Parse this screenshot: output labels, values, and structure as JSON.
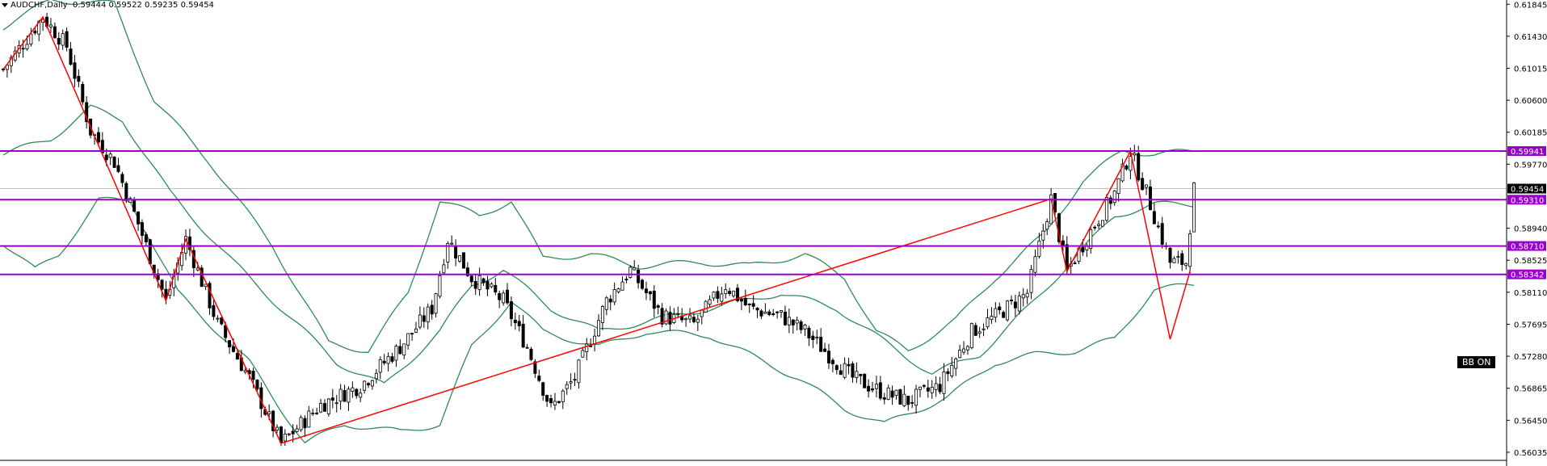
{
  "header": {
    "symbol": "AUDCHF,Daily",
    "ohlc": "0.59444 0.59522 0.59235 0.59454"
  },
  "badge": {
    "label": "BB ON"
  },
  "colors": {
    "bull": "#ffffff",
    "bear": "#000000",
    "wick": "#000000",
    "bollinger": "#2e8b57",
    "zigzag": "#ff0000",
    "level": "#9900cc",
    "price_label_bg": "#000000",
    "grid": "#c0c0c0"
  },
  "chart_data": {
    "type": "candlestick",
    "symbol": "AUDCHF",
    "timeframe": "Daily",
    "ylim": [
      0.5593,
      0.619
    ],
    "y_ticks": [
      "0.61845",
      "0.61430",
      "0.61015",
      "0.60600",
      "0.60185",
      "0.59770",
      "0.58940",
      "0.58525",
      "0.58110",
      "0.57695",
      "0.57280",
      "0.56865",
      "0.56450",
      "0.56035"
    ],
    "current_price": "0.59454",
    "levels": [
      {
        "price": 0.59941,
        "label": "0.59941"
      },
      {
        "price": 0.5931,
        "label": "0.59310"
      },
      {
        "price": 0.5871,
        "label": "0.58710"
      },
      {
        "price": 0.58342,
        "label": "0.58342"
      }
    ],
    "zigzag": [
      {
        "bar": 0,
        "price": 0.61
      },
      {
        "bar": 10,
        "price": 0.6168
      },
      {
        "bar": 41,
        "price": 0.58
      },
      {
        "bar": 46,
        "price": 0.588
      },
      {
        "bar": 70,
        "price": 0.5615
      },
      {
        "bar": 264,
        "price": 0.5932
      },
      {
        "bar": 268,
        "price": 0.5838
      },
      {
        "bar": 284,
        "price": 0.5994
      },
      {
        "bar": 294,
        "price": 0.575
      },
      {
        "bar": 299,
        "price": 0.5838
      }
    ],
    "bollinger_anchors": {
      "upper": [
        [
          0,
          0.6155
        ],
        [
          12,
          0.619
        ],
        [
          28,
          0.6185
        ],
        [
          38,
          0.606
        ],
        [
          52,
          0.598
        ],
        [
          68,
          0.587
        ],
        [
          82,
          0.5745
        ],
        [
          92,
          0.5735
        ],
        [
          102,
          0.581
        ],
        [
          110,
          0.593
        ],
        [
          120,
          0.591
        ],
        [
          128,
          0.593
        ],
        [
          136,
          0.5855
        ],
        [
          148,
          0.586
        ],
        [
          160,
          0.5845
        ],
        [
          176,
          0.585
        ],
        [
          188,
          0.5845
        ],
        [
          202,
          0.586
        ],
        [
          212,
          0.583
        ],
        [
          220,
          0.576
        ],
        [
          228,
          0.5735
        ],
        [
          240,
          0.5775
        ],
        [
          250,
          0.583
        ],
        [
          262,
          0.5885
        ],
        [
          272,
          0.5955
        ],
        [
          282,
          0.5995
        ],
        [
          290,
          0.599
        ],
        [
          300,
          0.5994
        ]
      ],
      "middle": [
        [
          0,
          0.599
        ],
        [
          12,
          0.601
        ],
        [
          22,
          0.605
        ],
        [
          30,
          0.6035
        ],
        [
          42,
          0.594
        ],
        [
          58,
          0.585
        ],
        [
          72,
          0.578
        ],
        [
          84,
          0.572
        ],
        [
          96,
          0.569
        ],
        [
          110,
          0.576
        ],
        [
          118,
          0.582
        ],
        [
          126,
          0.584
        ],
        [
          138,
          0.579
        ],
        [
          150,
          0.576
        ],
        [
          164,
          0.5775
        ],
        [
          178,
          0.579
        ],
        [
          196,
          0.581
        ],
        [
          210,
          0.579
        ],
        [
          224,
          0.574
        ],
        [
          234,
          0.5705
        ],
        [
          246,
          0.573
        ],
        [
          258,
          0.579
        ],
        [
          268,
          0.5845
        ],
        [
          280,
          0.591
        ],
        [
          290,
          0.5925
        ],
        [
          300,
          0.5925
        ]
      ],
      "lower": [
        [
          0,
          0.5875
        ],
        [
          8,
          0.584
        ],
        [
          14,
          0.586
        ],
        [
          24,
          0.593
        ],
        [
          32,
          0.593
        ],
        [
          44,
          0.581
        ],
        [
          62,
          0.572
        ],
        [
          76,
          0.5615
        ],
        [
          86,
          0.564
        ],
        [
          100,
          0.563
        ],
        [
          110,
          0.564
        ],
        [
          118,
          0.574
        ],
        [
          128,
          0.58
        ],
        [
          136,
          0.576
        ],
        [
          150,
          0.574
        ],
        [
          162,
          0.576
        ],
        [
          178,
          0.5755
        ],
        [
          188,
          0.573
        ],
        [
          200,
          0.57
        ],
        [
          212,
          0.566
        ],
        [
          222,
          0.564
        ],
        [
          238,
          0.5675
        ],
        [
          250,
          0.572
        ],
        [
          260,
          0.573
        ],
        [
          270,
          0.5735
        ],
        [
          280,
          0.575
        ],
        [
          290,
          0.5815
        ],
        [
          300,
          0.582
        ]
      ]
    },
    "price_path": [
      [
        0,
        0.61
      ],
      [
        10,
        0.6168
      ],
      [
        16,
        0.613
      ],
      [
        22,
        0.602
      ],
      [
        28,
        0.598
      ],
      [
        34,
        0.59
      ],
      [
        41,
        0.58
      ],
      [
        46,
        0.588
      ],
      [
        54,
        0.577
      ],
      [
        62,
        0.57
      ],
      [
        70,
        0.5615
      ],
      [
        80,
        0.5665
      ],
      [
        90,
        0.569
      ],
      [
        100,
        0.574
      ],
      [
        108,
        0.579
      ],
      [
        112,
        0.588
      ],
      [
        118,
        0.583
      ],
      [
        126,
        0.58
      ],
      [
        132,
        0.574
      ],
      [
        138,
        0.566
      ],
      [
        144,
        0.57
      ],
      [
        152,
        0.58
      ],
      [
        158,
        0.584
      ],
      [
        166,
        0.578
      ],
      [
        174,
        0.577
      ],
      [
        182,
        0.582
      ],
      [
        188,
        0.579
      ],
      [
        196,
        0.578
      ],
      [
        202,
        0.576
      ],
      [
        208,
        0.573
      ],
      [
        214,
        0.57
      ],
      [
        222,
        0.568
      ],
      [
        228,
        0.567
      ],
      [
        236,
        0.569
      ],
      [
        244,
        0.576
      ],
      [
        250,
        0.578
      ],
      [
        258,
        0.581
      ],
      [
        264,
        0.5932
      ],
      [
        268,
        0.5838
      ],
      [
        274,
        0.589
      ],
      [
        280,
        0.594
      ],
      [
        284,
        0.5994
      ],
      [
        288,
        0.594
      ],
      [
        294,
        0.585
      ],
      [
        298,
        0.585
      ],
      [
        300,
        0.5945
      ]
    ],
    "candle_count": 301
  }
}
